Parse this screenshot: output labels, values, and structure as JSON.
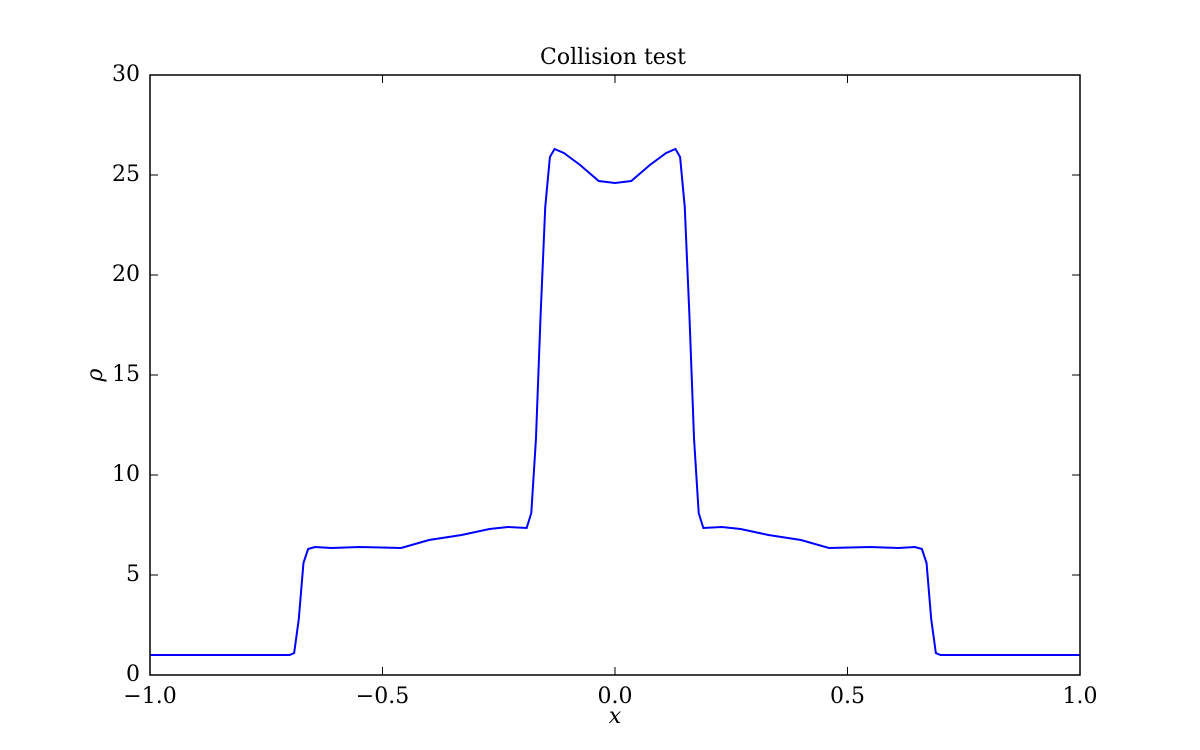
{
  "chart_data": {
    "type": "line",
    "title": "Collision test",
    "x_label": "x",
    "y_label": "ρ",
    "x": [
      -1,
      -0.7,
      -0.69,
      -0.68,
      -0.67,
      -0.66,
      -0.645,
      -0.61,
      -0.55,
      -0.46,
      -0.4,
      -0.33,
      -0.27,
      -0.23,
      -0.19,
      -0.18,
      -0.17,
      -0.16,
      -0.15,
      -0.14,
      -0.13,
      -0.11,
      -0.075,
      -0.035,
      0,
      0.035,
      0.075,
      0.11,
      0.13,
      0.14,
      0.15,
      0.16,
      0.17,
      0.18,
      0.19,
      0.23,
      0.27,
      0.33,
      0.4,
      0.46,
      0.55,
      0.61,
      0.645,
      0.66,
      0.67,
      0.68,
      0.69,
      0.7,
      1
    ],
    "values": [
      1,
      1,
      1.1,
      2.8,
      5.6,
      6.3,
      6.4,
      6.35,
      6.4,
      6.35,
      6.75,
      7.0,
      7.3,
      7.4,
      7.35,
      8.1,
      11.8,
      18,
      23.4,
      25.9,
      26.3,
      26.1,
      25.5,
      24.7,
      24.6,
      24.7,
      25.5,
      26.1,
      26.3,
      25.9,
      23.4,
      18,
      11.8,
      8.1,
      7.35,
      7.4,
      7.3,
      7.0,
      6.75,
      6.35,
      6.4,
      6.35,
      6.4,
      6.3,
      5.6,
      2.8,
      1.1,
      1,
      1
    ],
    "color": "#0000ff",
    "xlim": [
      -1,
      1
    ],
    "ylim": [
      0,
      30
    ],
    "xticks": [
      {
        "value": -1,
        "label": "−1.0"
      },
      {
        "value": -0.5,
        "label": "−0.5"
      },
      {
        "value": 0,
        "label": "0.0"
      },
      0.5,
      {
        "value": 1,
        "label": "1.0"
      }
    ],
    "yticks": [
      0,
      5,
      10,
      15,
      20,
      25,
      30
    ],
    "grid": false
  }
}
